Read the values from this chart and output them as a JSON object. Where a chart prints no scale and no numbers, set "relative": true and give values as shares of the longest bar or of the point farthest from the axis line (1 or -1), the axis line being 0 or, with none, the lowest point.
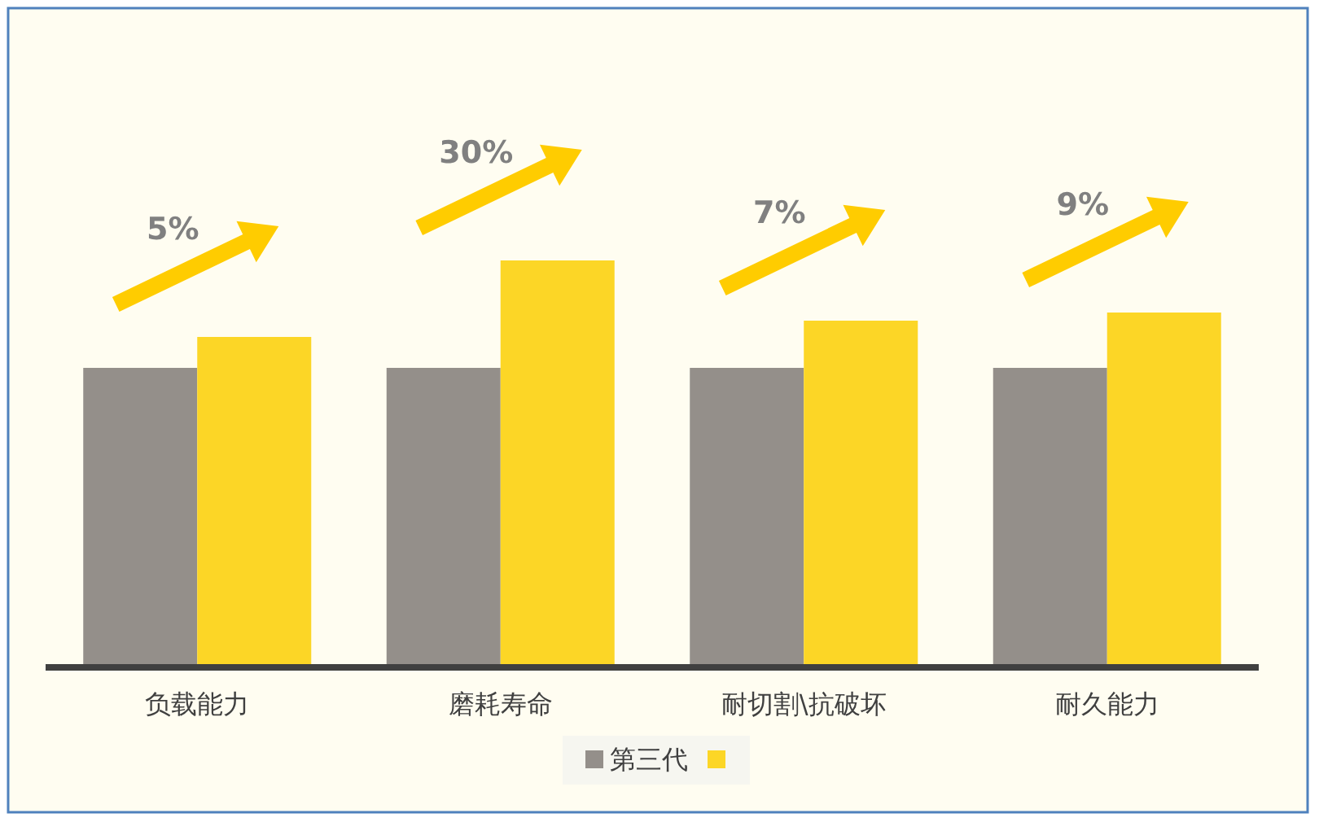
{
  "chart_data": {
    "type": "bar",
    "relative": true,
    "categories": [
      "负载能力",
      "磨耗寿命",
      "耐切割\\抗破坏",
      "耐久能力"
    ],
    "series": [
      {
        "name": "第三代",
        "color": "#948f8a",
        "values": [
          0.736,
          0.736,
          0.736,
          0.736
        ]
      },
      {
        "color": "#fcd626",
        "values": [
          0.812,
          1,
          0.852,
          0.872
        ]
      }
    ],
    "annotations": [
      "5%",
      "30%",
      "7%",
      "9%"
    ],
    "legend": "bottom"
  }
}
